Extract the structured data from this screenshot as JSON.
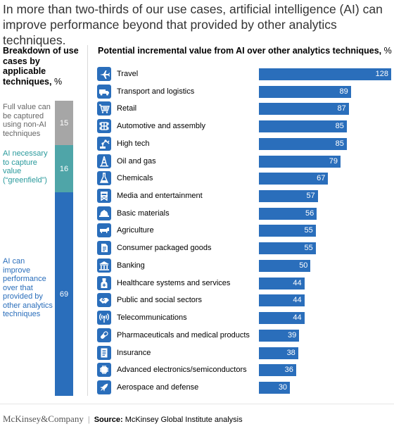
{
  "title": "In more than two-thirds of our use cases, artificial intelligence (AI) can improve performance beyond that provided by other analytics techniques.",
  "left_panel": {
    "heading": "Breakdown of use cases by applicable techniques,",
    "unit": "%",
    "segments": [
      {
        "label": "Full value can be captured using non-AI techniques",
        "value": 15,
        "color": "#a6a6a6",
        "label_color": "#666666"
      },
      {
        "label": "AI necessary to capture value (“greenfield”)",
        "value": 16,
        "color": "#4fa5a8",
        "label_color": "#2a9a9c"
      },
      {
        "label": "AI can improve performance over that provided by other analytics techniques",
        "value": 69,
        "color": "#2a6ebb",
        "label_color": "#2a6ebb"
      }
    ]
  },
  "chart_data": {
    "type": "bar",
    "orientation": "horizontal",
    "title": "Potential incremental value from AI over other analytics techniques,",
    "unit": "%",
    "categories": [
      "Travel",
      "Transport and logistics",
      "Retail",
      "Automotive and assembly",
      "High tech",
      "Oil and gas",
      "Chemicals",
      "Media and entertainment",
      "Basic materials",
      "Agriculture",
      "Consumer packaged goods",
      "Banking",
      "Healthcare systems and services",
      "Public and social sectors",
      "Telecommunications",
      "Pharmaceuticals and medical products",
      "Insurance",
      "Advanced electronics/semiconductors",
      "Aerospace and defense"
    ],
    "values": [
      128,
      89,
      87,
      85,
      85,
      79,
      67,
      57,
      56,
      55,
      55,
      50,
      44,
      44,
      44,
      39,
      38,
      36,
      30
    ],
    "icons": [
      "airplane-icon",
      "truck-icon",
      "shopping-cart-icon",
      "car-chassis-icon",
      "robot-arm-icon",
      "oil-rig-icon",
      "flask-icon",
      "directors-chair-icon",
      "hard-hat-icon",
      "cow-icon",
      "package-icon",
      "bank-icon",
      "medical-icon",
      "handshake-icon",
      "antenna-icon",
      "pill-icon",
      "document-icon",
      "chip-icon",
      "rocket-icon"
    ],
    "bar_color": "#2a6ebb",
    "xlim": [
      0,
      128
    ],
    "data_labels": true,
    "grid": false
  },
  "footer": {
    "brand": "McKinsey&Company",
    "source_label": "Source:",
    "source_text": "McKinsey Global Institute analysis"
  }
}
